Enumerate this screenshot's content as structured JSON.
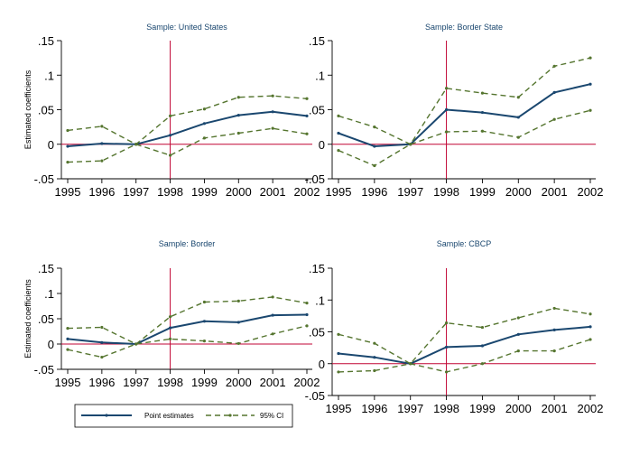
{
  "colors": {
    "point": "#1a476f",
    "ci": "#55752f",
    "ref": "#c10534",
    "axis": "#000000",
    "title": "#1a476f"
  },
  "legend": {
    "point_label": "Point estimates",
    "ci_label": "95% CI"
  },
  "chart_data": [
    {
      "type": "line",
      "title": "Sample: United States",
      "ylabel": "Estimated coefficients",
      "xlabel": "",
      "x": [
        1995,
        1996,
        1997,
        1998,
        1999,
        2000,
        2001,
        2002
      ],
      "xtick_labels": [
        "1995",
        "1996",
        "1997",
        "1998",
        "1999",
        "2000",
        "2001",
        "2002"
      ],
      "ylim": [
        -0.05,
        0.15
      ],
      "yticks": [
        -0.05,
        0,
        0.05,
        0.1,
        0.15
      ],
      "ytick_labels": [
        "-.05",
        "0",
        ".05",
        ".1",
        ".15"
      ],
      "ref_x": 1998,
      "ref_y": 0,
      "series": [
        {
          "name": "Point estimates",
          "values": [
            -0.003,
            0.001,
            0.0,
            0.013,
            0.03,
            0.042,
            0.047,
            0.041
          ]
        },
        {
          "name": "95% CI upper",
          "values": [
            0.02,
            0.026,
            0.0,
            0.041,
            0.051,
            0.068,
            0.07,
            0.066
          ]
        },
        {
          "name": "95% CI lower",
          "values": [
            -0.026,
            -0.024,
            0.0,
            -0.016,
            0.009,
            0.016,
            0.023,
            0.015
          ]
        }
      ]
    },
    {
      "type": "line",
      "title": "Sample: Border State",
      "ylabel": "",
      "xlabel": "",
      "x": [
        1995,
        1996,
        1997,
        1998,
        1999,
        2000,
        2001,
        2002
      ],
      "xtick_labels": [
        "1995",
        "1996",
        "1997",
        "1998",
        "1999",
        "2000",
        "2001",
        "2002"
      ],
      "ylim": [
        -0.05,
        0.15
      ],
      "yticks": [
        -0.05,
        0,
        0.05,
        0.1,
        0.15
      ],
      "ytick_labels": [
        "-.05",
        "0",
        ".05",
        ".1",
        ".15"
      ],
      "ref_x": 1998,
      "ref_y": 0,
      "series": [
        {
          "name": "Point estimates",
          "values": [
            0.016,
            -0.003,
            0.0,
            0.05,
            0.046,
            0.039,
            0.075,
            0.087
          ]
        },
        {
          "name": "95% CI upper",
          "values": [
            0.041,
            0.025,
            0.0,
            0.081,
            0.074,
            0.068,
            0.113,
            0.125
          ]
        },
        {
          "name": "95% CI lower",
          "values": [
            -0.009,
            -0.031,
            0.0,
            0.018,
            0.019,
            0.01,
            0.036,
            0.049
          ]
        }
      ]
    },
    {
      "type": "line",
      "title": "Sample: Border",
      "ylabel": "Estimated coefficients",
      "xlabel": "",
      "x": [
        1995,
        1996,
        1997,
        1998,
        1999,
        2000,
        2001,
        2002
      ],
      "xtick_labels": [
        "1995",
        "1996",
        "1997",
        "1998",
        "1999",
        "2000",
        "2001",
        "2002"
      ],
      "ylim": [
        -0.05,
        0.15
      ],
      "yticks": [
        -0.05,
        0,
        0.05,
        0.1,
        0.15
      ],
      "ytick_labels": [
        "-.05",
        "0",
        ".05",
        ".1",
        ".15"
      ],
      "ref_x": 1998,
      "ref_y": 0,
      "series": [
        {
          "name": "Point estimates",
          "values": [
            0.01,
            0.003,
            0.0,
            0.032,
            0.045,
            0.043,
            0.057,
            0.058
          ]
        },
        {
          "name": "95% CI upper",
          "values": [
            0.031,
            0.033,
            0.0,
            0.054,
            0.083,
            0.085,
            0.093,
            0.081
          ]
        },
        {
          "name": "95% CI lower",
          "values": [
            -0.011,
            -0.026,
            0.0,
            0.01,
            0.006,
            0.001,
            0.02,
            0.036
          ]
        }
      ]
    },
    {
      "type": "line",
      "title": "Sample: CBCP",
      "ylabel": "",
      "xlabel": "",
      "x": [
        1995,
        1996,
        1997,
        1998,
        1999,
        2000,
        2001,
        2002
      ],
      "xtick_labels": [
        "1995",
        "1996",
        "1997",
        "1998",
        "1999",
        "2000",
        "2001",
        "2002"
      ],
      "ylim": [
        -0.05,
        0.15
      ],
      "yticks": [
        -0.05,
        0,
        0.05,
        0.1,
        0.15
      ],
      "ytick_labels": [
        "-.05",
        "0",
        ".05",
        ".1",
        ".15"
      ],
      "ref_x": 1998,
      "ref_y": 0,
      "series": [
        {
          "name": "Point estimates",
          "values": [
            0.016,
            0.01,
            0.0,
            0.026,
            0.028,
            0.046,
            0.053,
            0.058
          ]
        },
        {
          "name": "95% CI upper",
          "values": [
            0.046,
            0.032,
            0.0,
            0.064,
            0.057,
            0.072,
            0.087,
            0.078
          ]
        },
        {
          "name": "95% CI lower",
          "values": [
            -0.013,
            -0.011,
            0.0,
            -0.013,
            0.0,
            0.02,
            0.02,
            0.038
          ]
        }
      ]
    }
  ]
}
